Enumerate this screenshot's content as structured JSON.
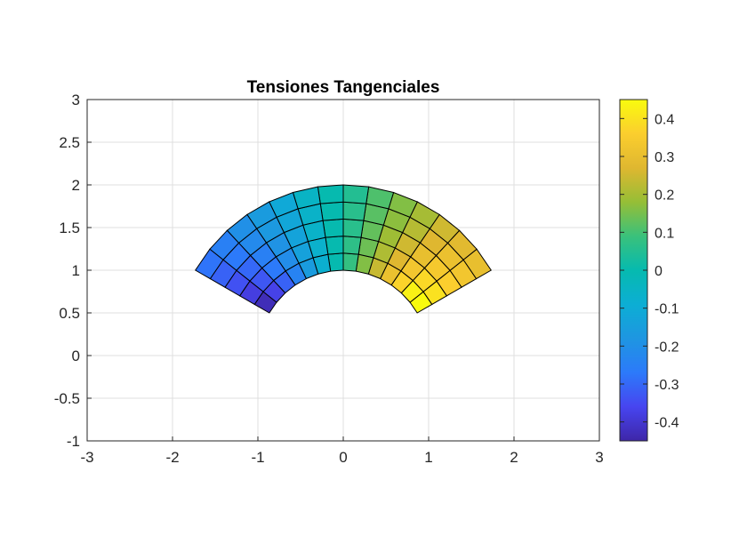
{
  "chart_data": {
    "type": "heatmap",
    "title": "Tensiones Tangenciales",
    "xlabel": "",
    "ylabel": "",
    "xlim": [
      -3,
      3
    ],
    "ylim": [
      -1,
      3
    ],
    "x_ticks": [
      "-3",
      "-2",
      "-1",
      "0",
      "1",
      "2",
      "3"
    ],
    "y_ticks": [
      "-1",
      "-0.5",
      "0",
      "0.5",
      "1",
      "1.5",
      "2",
      "2.5",
      "3"
    ],
    "grid": true,
    "mesh": {
      "inner_radius": 1,
      "outer_radius": 2,
      "theta_start_deg": 30,
      "theta_end_deg": 150,
      "radial_divisions": 5,
      "angular_divisions": 14
    },
    "values": [
      [
        0.45,
        0.43,
        0.37,
        0.31,
        0.24,
        0.16,
        0.08,
        0.0,
        -0.08,
        -0.16,
        -0.24,
        -0.31,
        -0.37,
        -0.43
      ],
      [
        0.4,
        0.38,
        0.33,
        0.27,
        0.21,
        0.14,
        0.07,
        0.0,
        -0.07,
        -0.14,
        -0.21,
        -0.27,
        -0.33,
        -0.38
      ],
      [
        0.36,
        0.34,
        0.3,
        0.25,
        0.19,
        0.13,
        0.06,
        0.0,
        -0.06,
        -0.13,
        -0.19,
        -0.25,
        -0.3,
        -0.34
      ],
      [
        0.33,
        0.31,
        0.27,
        0.22,
        0.17,
        0.12,
        0.06,
        0.0,
        -0.06,
        -0.12,
        -0.17,
        -0.22,
        -0.27,
        -0.31
      ],
      [
        0.3,
        0.28,
        0.25,
        0.2,
        0.16,
        0.11,
        0.05,
        0.0,
        -0.05,
        -0.11,
        -0.16,
        -0.2,
        -0.25,
        -0.28
      ]
    ],
    "colorbar": {
      "colormap": "parula",
      "range": [
        -0.45,
        0.45
      ],
      "ticks": [
        "0.4",
        "0.3",
        "0.2",
        "0.1",
        "0",
        "-0.1",
        "-0.2",
        "-0.3",
        "-0.4"
      ],
      "tick_values": [
        0.4,
        0.3,
        0.2,
        0.1,
        0,
        -0.1,
        -0.2,
        -0.3,
        -0.4
      ]
    }
  }
}
